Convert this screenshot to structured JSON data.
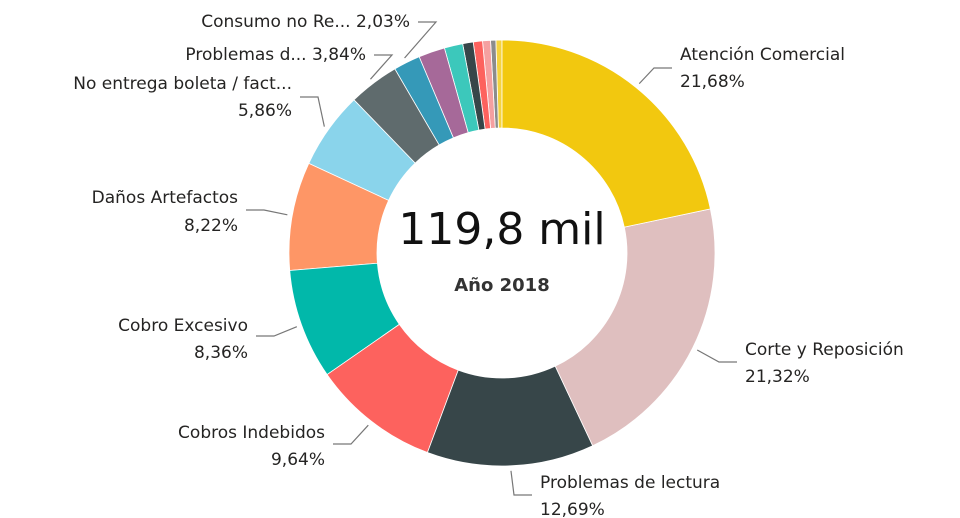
{
  "chart_data": {
    "type": "donut",
    "center_label": "119,8 mil",
    "subtitle": "Año 2018",
    "categories": [
      "Atención Comercial",
      "Corte y Reposición",
      "Problemas de lectura",
      "Cobros Indebidos",
      "Cobro Excesivo",
      "Daños Artefactos",
      "No entrega boleta / fact...",
      "Problemas d...",
      "Consumo no Re...",
      null,
      null,
      null,
      null,
      null,
      null,
      null
    ],
    "values": [
      21.68,
      21.32,
      12.69,
      9.64,
      8.36,
      8.22,
      5.86,
      3.84,
      2.03,
      2.0,
      1.4,
      0.8,
      0.7,
      0.6,
      0.4,
      0.46
    ],
    "value_labels": [
      "21,68%",
      "21,32%",
      "12,69%",
      "9,64%",
      "8,36%",
      "8,22%",
      "5,86%",
      "3,84%",
      "2,03%",
      null,
      null,
      null,
      null,
      null,
      null,
      null
    ],
    "colors": [
      "#F2C80F",
      "#DFBFBF",
      "#374649",
      "#FD625E",
      "#01B8AA",
      "#FE9666",
      "#8AD4EB",
      "#5F6B6D",
      "#3599B8",
      "#A66999",
      "#3CC8BB",
      "#374649",
      "#FD625E",
      "#F5A0A0",
      "#8C8C8C",
      "#F5D33F"
    ]
  }
}
